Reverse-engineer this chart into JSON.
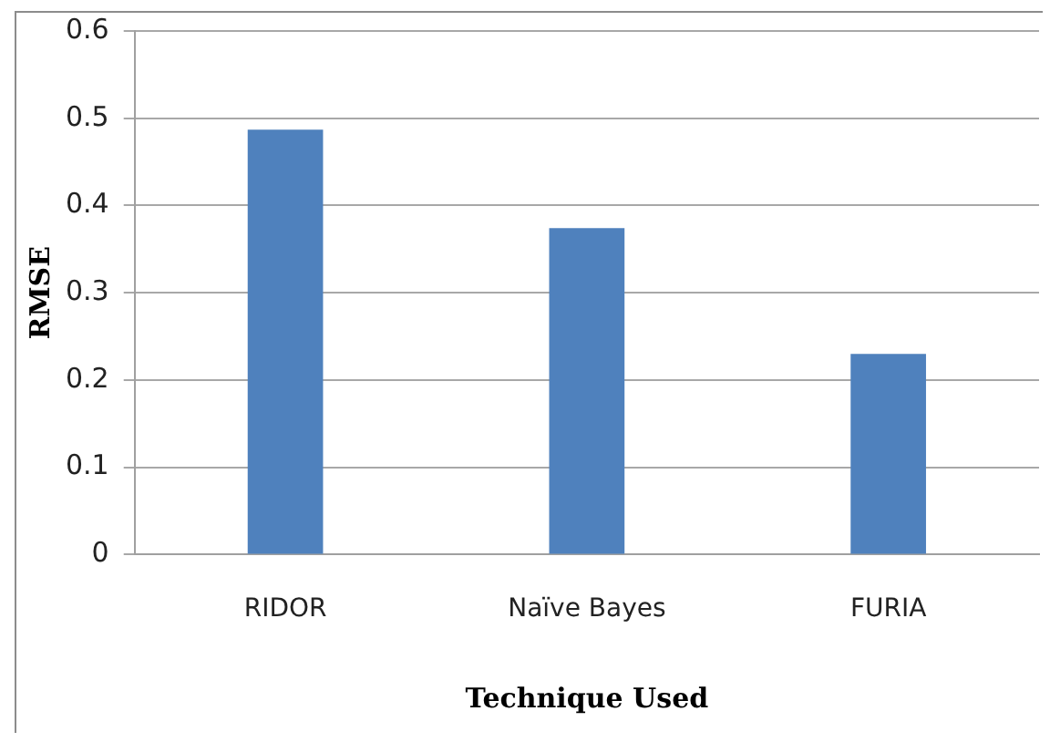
{
  "chart_data": {
    "type": "bar",
    "xlabel": "Technique Used",
    "ylabel": "RMSE",
    "categories": [
      "RIDOR",
      "Naïve Bayes",
      "FURIA"
    ],
    "values": [
      0.487,
      0.374,
      0.23
    ],
    "color": "#4f81bd",
    "ylim": [
      0,
      0.6
    ],
    "yticks": [
      0,
      0.1,
      0.2,
      0.3,
      0.4,
      0.5,
      0.6
    ],
    "grid": "y",
    "legend": false
  }
}
